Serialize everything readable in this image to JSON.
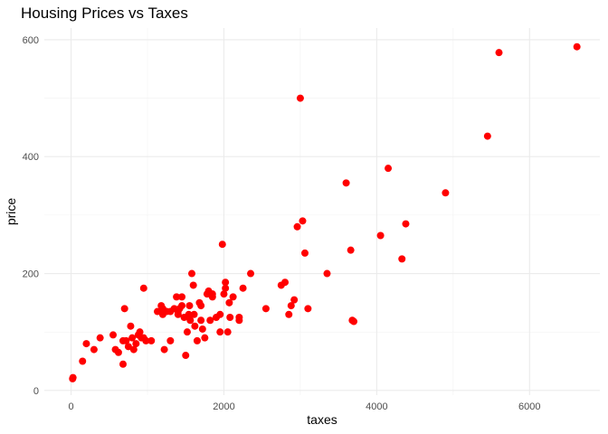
{
  "chart_data": {
    "type": "scatter",
    "title": "Housing Prices vs Taxes",
    "xlabel": "taxes",
    "ylabel": "price",
    "xlim": [
      -350,
      6920
    ],
    "ylim": [
      -8,
      620
    ],
    "xticks": [
      0,
      2000,
      4000,
      6000
    ],
    "yticks": [
      0,
      200,
      400,
      600
    ],
    "grid": true,
    "point_color": "#ff0000",
    "series": [
      {
        "x": [
          20,
          25,
          150,
          200,
          300,
          380,
          550,
          580,
          620,
          680,
          700,
          720,
          750,
          780,
          800,
          820,
          850,
          880,
          900,
          920,
          950,
          980,
          1050,
          1180,
          1200,
          1220,
          1250,
          1300,
          1350,
          1380,
          1400,
          1420,
          1450,
          1480,
          1500,
          1520,
          1540,
          1560,
          1580,
          1600,
          1620,
          1650,
          1680,
          1700,
          1720,
          1750,
          1780,
          1800,
          1820,
          1850,
          1900,
          1950,
          1980,
          2000,
          2020,
          2050,
          2080,
          2120,
          2200,
          2250,
          2550,
          2750,
          2800,
          2850,
          2880,
          2920,
          3000,
          3030,
          3060,
          3100,
          3350,
          3600,
          3660,
          3680,
          4050,
          4150,
          4330,
          4380,
          4900,
          5450,
          5600,
          6620,
          680,
          950,
          1130,
          1400,
          1550,
          1610,
          1820,
          2020,
          2200,
          2960,
          3700,
          1200,
          1300,
          1450,
          1700,
          1850,
          1950,
          2070,
          2350
        ],
        "y": [
          20,
          22,
          50,
          80,
          70,
          90,
          95,
          70,
          65,
          45,
          140,
          85,
          75,
          110,
          90,
          70,
          80,
          95,
          100,
          90,
          175,
          85,
          85,
          145,
          130,
          70,
          135,
          85,
          140,
          160,
          130,
          140,
          160,
          125,
          60,
          100,
          130,
          120,
          200,
          180,
          110,
          85,
          150,
          145,
          105,
          90,
          165,
          170,
          120,
          160,
          125,
          100,
          250,
          165,
          175,
          100,
          125,
          160,
          120,
          175,
          140,
          180,
          185,
          130,
          145,
          155,
          500,
          290,
          235,
          140,
          200,
          355,
          240,
          120,
          265,
          380,
          225,
          285,
          338,
          435,
          578,
          588,
          85,
          90,
          135,
          135,
          145,
          130,
          165,
          185,
          125,
          280,
          118,
          140,
          135,
          145,
          120,
          165,
          130,
          150,
          200
        ]
      }
    ]
  }
}
